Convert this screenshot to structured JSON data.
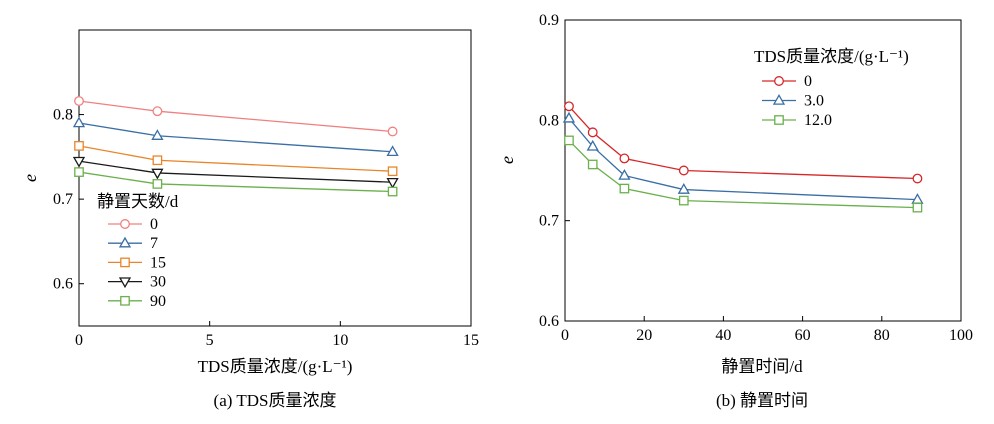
{
  "chart_data": [
    {
      "type": "line",
      "caption": "(a) TDS质量浓度",
      "xlabel": "TDS质量浓度/(g·L⁻¹)",
      "ylabel": "e",
      "xlim": [
        0,
        15
      ],
      "ylim": [
        0.55,
        0.9
      ],
      "xticks": [
        0,
        5,
        10,
        15
      ],
      "yticks": [
        0.6,
        0.7,
        0.8
      ],
      "x": [
        0,
        3,
        12
      ],
      "legend_title": "静置天数/d",
      "legend_position": "lower-left",
      "series": [
        {
          "name": "0",
          "values": [
            0.816,
            0.804,
            0.78
          ],
          "color": "#f08080",
          "marker": "circle"
        },
        {
          "name": "7",
          "values": [
            0.79,
            0.775,
            0.756
          ],
          "color": "#3a6ea5",
          "marker": "triangle-up"
        },
        {
          "name": "15",
          "values": [
            0.763,
            0.746,
            0.733
          ],
          "color": "#e8852a",
          "marker": "square"
        },
        {
          "name": "30",
          "values": [
            0.745,
            0.731,
            0.72
          ],
          "color": "#1a1a1a",
          "marker": "triangle-down"
        },
        {
          "name": "90",
          "values": [
            0.732,
            0.718,
            0.709
          ],
          "color": "#6ab04c",
          "marker": "square"
        }
      ]
    },
    {
      "type": "line",
      "caption": "(b) 静置时间",
      "xlabel": "静置时间/d",
      "ylabel": "e",
      "xlim": [
        0,
        100
      ],
      "ylim": [
        0.6,
        0.9
      ],
      "xticks": [
        0,
        20,
        40,
        60,
        80,
        100
      ],
      "yticks": [
        0.6,
        0.7,
        0.8,
        0.9
      ],
      "x": [
        1,
        7,
        15,
        30,
        89
      ],
      "legend_title": "TDS质量浓度/(g·L⁻¹)",
      "legend_position": "upper-right",
      "series": [
        {
          "name": "0",
          "values": [
            0.814,
            0.788,
            0.762,
            0.75,
            0.742
          ],
          "color": "#d62728",
          "marker": "circle"
        },
        {
          "name": "3.0",
          "values": [
            0.802,
            0.774,
            0.745,
            0.731,
            0.721
          ],
          "color": "#3a6ea5",
          "marker": "triangle-up"
        },
        {
          "name": "12.0",
          "values": [
            0.78,
            0.756,
            0.732,
            0.72,
            0.713
          ],
          "color": "#6ab04c",
          "marker": "square"
        }
      ]
    }
  ]
}
